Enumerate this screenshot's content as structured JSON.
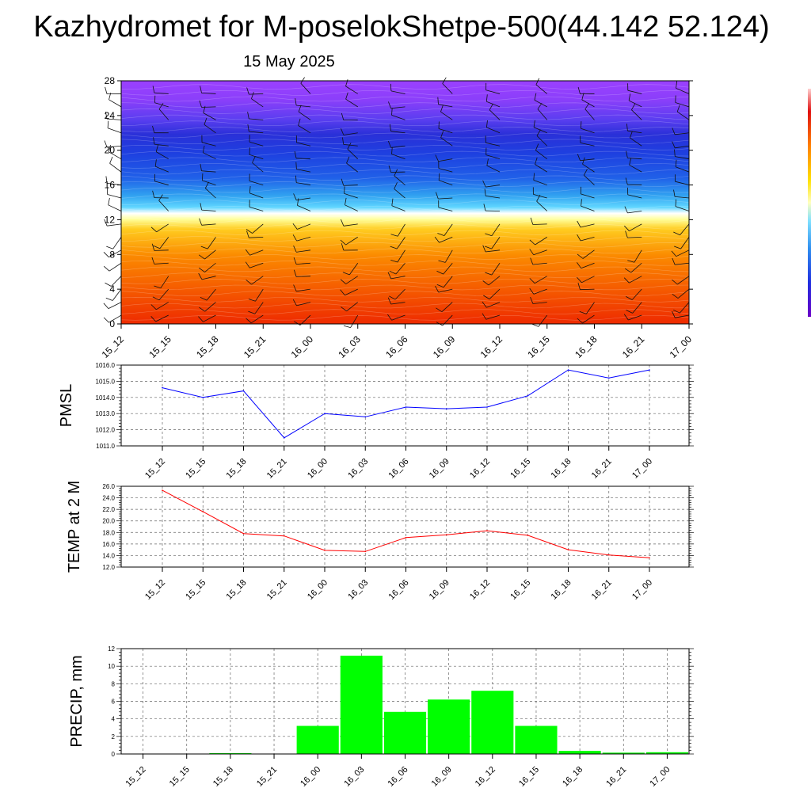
{
  "page": {
    "title": "Kazhydromet for M-poselokShetpe-500(44.142 52.124)",
    "date": "15 May 2025"
  },
  "colors": {
    "pmsl_line": "#0000ff",
    "temp_line": "#ff0000",
    "precip_bar": "#00ff00",
    "grid": "#666666"
  },
  "chart_data": [
    {
      "type": "heatmap",
      "name": "height-time cross section",
      "x": [
        "15_12",
        "15_15",
        "15_18",
        "15_21",
        "16_00",
        "16_03",
        "16_06",
        "16_09",
        "16_12",
        "16_15",
        "16_18",
        "16_21",
        "17_00"
      ],
      "y_ticks": [
        0,
        4,
        8,
        12,
        16,
        20,
        24,
        28
      ],
      "ylim": [
        0,
        28
      ],
      "colorbar": "temperature-like palette (red warm near surface, yellow ~12, blue 14-24, violet aloft)",
      "overlay": "wind barbs"
    },
    {
      "type": "line",
      "ylabel": "PMSL",
      "categories": [
        "15_12",
        "15_15",
        "15_18",
        "15_21",
        "16_00",
        "16_03",
        "16_06",
        "16_09",
        "16_12",
        "16_15",
        "16_18",
        "16_21",
        "17_00"
      ],
      "values": [
        1014.6,
        1014.0,
        1014.4,
        1011.5,
        1013.0,
        1012.8,
        1013.4,
        1013.3,
        1013.4,
        1014.1,
        1015.7,
        1015.2,
        1015.7
      ],
      "ylim": [
        1011.0,
        1016.0
      ],
      "y_ticks": [
        "1011.0",
        "1012.0",
        "1013.0",
        "1014.0",
        "1015.0",
        "1016.0"
      ]
    },
    {
      "type": "line",
      "ylabel": "TEMP at 2 M",
      "categories": [
        "15_12",
        "15_15",
        "15_18",
        "15_21",
        "16_00",
        "16_03",
        "16_06",
        "16_09",
        "16_12",
        "16_15",
        "16_18",
        "16_21",
        "17_00"
      ],
      "values": [
        25.3,
        21.6,
        17.8,
        17.4,
        14.9,
        14.7,
        17.1,
        17.6,
        18.3,
        17.5,
        15.0,
        14.1,
        13.6
      ],
      "ylim": [
        12.0,
        26.0
      ],
      "y_ticks": [
        "12.0",
        "14.0",
        "16.0",
        "18.0",
        "20.0",
        "22.0",
        "24.0",
        "26.0"
      ]
    },
    {
      "type": "bar",
      "ylabel": "PRECIP, mm",
      "categories": [
        "15_12",
        "15_15",
        "15_18",
        "15_21",
        "16_00",
        "16_03",
        "16_06",
        "16_09",
        "16_12",
        "16_15",
        "16_18",
        "16_21",
        "17_00"
      ],
      "values": [
        0,
        0,
        0.1,
        0,
        3.2,
        11.2,
        4.8,
        6.2,
        7.2,
        3.2,
        0.35,
        0.15,
        0.2
      ],
      "ylim": [
        0,
        12
      ],
      "y_ticks": [
        "0",
        "2",
        "4",
        "6",
        "8",
        "10",
        "12"
      ]
    }
  ]
}
